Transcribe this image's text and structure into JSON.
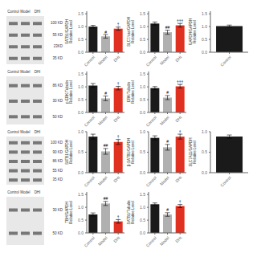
{
  "chart_data": [
    {
      "type": "blot",
      "categories": [
        "Control",
        "Model",
        "DHI"
      ],
      "annotations": [
        "100 KD",
        "55 KD",
        "23KD",
        "35 KD"
      ]
    },
    {
      "type": "bar",
      "ylabel": "SATB1/GAPDH\nRelative Level",
      "categories": [
        "Control",
        "Model",
        "DHI"
      ],
      "values": [
        1.0,
        0.62,
        0.92
      ],
      "errors": [
        0.05,
        0.07,
        0.06
      ],
      "colors": [
        "#1a1a1a",
        "#b0b0b0",
        "#e03020"
      ],
      "annotations": [
        null,
        "#",
        "†"
      ],
      "ylim": [
        0.0,
        1.6
      ],
      "yticks": [
        {
          "value": 0,
          "label": "0.0"
        },
        0.5,
        {
          "value": 1,
          "label": "1.0"
        },
        1.5
      ]
    },
    {
      "type": "bar",
      "ylabel": "SLC7/cas/GAPDH\nRelative Level",
      "categories": [
        "Control",
        "Model",
        "DHI"
      ],
      "values": [
        1.12,
        0.78,
        1.05
      ],
      "errors": [
        0.06,
        0.08,
        0.07
      ],
      "colors": [
        "#1a1a1a",
        "#b0b0b0",
        "#e03020"
      ],
      "annotations": [
        null,
        "##",
        "†††"
      ],
      "ylim": [
        0.0,
        1.6
      ],
      "yticks": [
        {
          "value": 0,
          "label": "0.0"
        },
        0.5,
        {
          "value": 1,
          "label": "1.0"
        },
        1.5
      ]
    },
    {
      "type": "bar",
      "ylabel": "GAPDH/GAPDH\nRelative Level",
      "categories": [
        "Control"
      ],
      "values": [
        1.02
      ],
      "errors": [
        0.04
      ],
      "colors": [
        "#1a1a1a"
      ],
      "annotations": [
        null
      ],
      "ylim": [
        0.0,
        1.6
      ],
      "yticks": [
        {
          "value": 0,
          "label": "0.0"
        },
        0.5,
        {
          "value": 1,
          "label": "1.0"
        },
        1.5
      ]
    },
    {
      "type": "blot",
      "categories": [
        "Control",
        "Model",
        "DHI"
      ],
      "annotations": [
        "86 KD",
        "30 KD",
        "50 KD"
      ]
    },
    {
      "type": "bar",
      "ylabel": "p-ERK/Tubulin\nRelative Level",
      "categories": [
        "Control",
        "Model",
        "DHI"
      ],
      "values": [
        1.05,
        0.55,
        0.95
      ],
      "errors": [
        0.08,
        0.09,
        0.07
      ],
      "colors": [
        "#1a1a1a",
        "#b0b0b0",
        "#e03020"
      ],
      "annotations": [
        null,
        "#",
        "†"
      ],
      "ylim": [
        0.0,
        1.6
      ],
      "yticks": [
        {
          "value": 0,
          "label": "0.0"
        },
        0.5,
        {
          "value": 1,
          "label": "1.0"
        },
        1.5
      ]
    },
    {
      "type": "bar",
      "ylabel": "ERK/Tubulin\nRelative Level",
      "categories": [
        "Control",
        "Model",
        "DHI"
      ],
      "values": [
        0.95,
        0.58,
        1.02
      ],
      "errors": [
        0.06,
        0.08,
        0.07
      ],
      "colors": [
        "#1a1a1a",
        "#b0b0b0",
        "#e03020"
      ],
      "annotations": [
        null,
        "#",
        "†††"
      ],
      "ylim": [
        0.0,
        1.6
      ],
      "yticks": [
        {
          "value": 0,
          "label": "0.0"
        },
        0.5,
        {
          "value": 1,
          "label": "1.0"
        },
        1.5
      ]
    },
    {
      "type": "blot",
      "categories": [
        "Control",
        "Model",
        "DHI"
      ],
      "annotations": [
        "100 KD",
        "90 KD",
        "86 KD",
        "55 KD",
        "35 KD"
      ]
    },
    {
      "type": "bar",
      "ylabel": "SATB1/GAPDH\nRelative Level",
      "categories": [
        "Control",
        "Model",
        "DHI"
      ],
      "values": [
        0.88,
        0.52,
        0.75
      ],
      "errors": [
        0.06,
        0.07,
        0.06
      ],
      "colors": [
        "#1a1a1a",
        "#b0b0b0",
        "#e03020"
      ],
      "annotations": [
        null,
        "##",
        "†"
      ],
      "ylim": [
        0.0,
        1.0
      ],
      "yticks": [
        {
          "value": 0,
          "label": "0.0"
        },
        0.5,
        {
          "value": 1,
          "label": "1.0"
        }
      ]
    },
    {
      "type": "bar",
      "ylabel": "β-SATB1/GAPDH\nRelative Level",
      "categories": [
        "Control",
        "Model",
        "DHI"
      ],
      "values": [
        0.85,
        0.62,
        0.88
      ],
      "errors": [
        0.05,
        0.07,
        0.06
      ],
      "colors": [
        "#1a1a1a",
        "#b0b0b0",
        "#e03020"
      ],
      "annotations": [
        null,
        "#",
        "†"
      ],
      "ylim": [
        0.0,
        1.0
      ],
      "yticks": [
        {
          "value": 0,
          "label": "0.0"
        },
        0.5,
        {
          "value": 1,
          "label": "1.0"
        }
      ]
    },
    {
      "type": "bar",
      "ylabel": "SLC7A11/GAPDH\nRelative Level",
      "categories": [
        "Control"
      ],
      "values": [
        0.88
      ],
      "errors": [
        0.04
      ],
      "colors": [
        "#1a1a1a"
      ],
      "annotations": [
        null
      ],
      "ylim": [
        0.0,
        1.0
      ],
      "yticks": [
        {
          "value": 0,
          "label": "0.0"
        },
        0.5,
        {
          "value": 1,
          "label": "1.0"
        }
      ]
    },
    {
      "type": "blot",
      "categories": [
        "Control",
        "Model",
        "DHI"
      ],
      "annotations": [
        "30 KD",
        "50 KD"
      ]
    },
    {
      "type": "bar",
      "ylabel": "TBH/GAPDH\nRelative Level",
      "categories": [
        "Control",
        "Model",
        "DHI"
      ],
      "values": [
        0.72,
        1.15,
        0.45
      ],
      "errors": [
        0.06,
        0.08,
        0.07
      ],
      "colors": [
        "#1a1a1a",
        "#b0b0b0",
        "#e03020"
      ],
      "annotations": [
        null,
        "##",
        "†"
      ],
      "ylim": [
        0.0,
        1.6
      ],
      "yticks": [
        {
          "value": 0,
          "label": "0.0"
        },
        0.5,
        {
          "value": 1,
          "label": "1.0"
        },
        1.5
      ]
    },
    {
      "type": "bar",
      "ylabel": "SATB1/Tubulin\nRelative Level",
      "categories": [
        "Control",
        "Model",
        "DHI"
      ],
      "values": [
        1.12,
        0.72,
        1.05
      ],
      "errors": [
        0.05,
        0.07,
        0.06
      ],
      "colors": [
        "#1a1a1a",
        "#b0b0b0",
        "#e03020"
      ],
      "annotations": [
        null,
        "#",
        "†"
      ],
      "ylim": [
        0.0,
        1.6
      ],
      "yticks": [
        {
          "value": 0,
          "label": "0.0"
        },
        0.5,
        {
          "value": 1,
          "label": "1.0"
        },
        1.5
      ]
    }
  ]
}
